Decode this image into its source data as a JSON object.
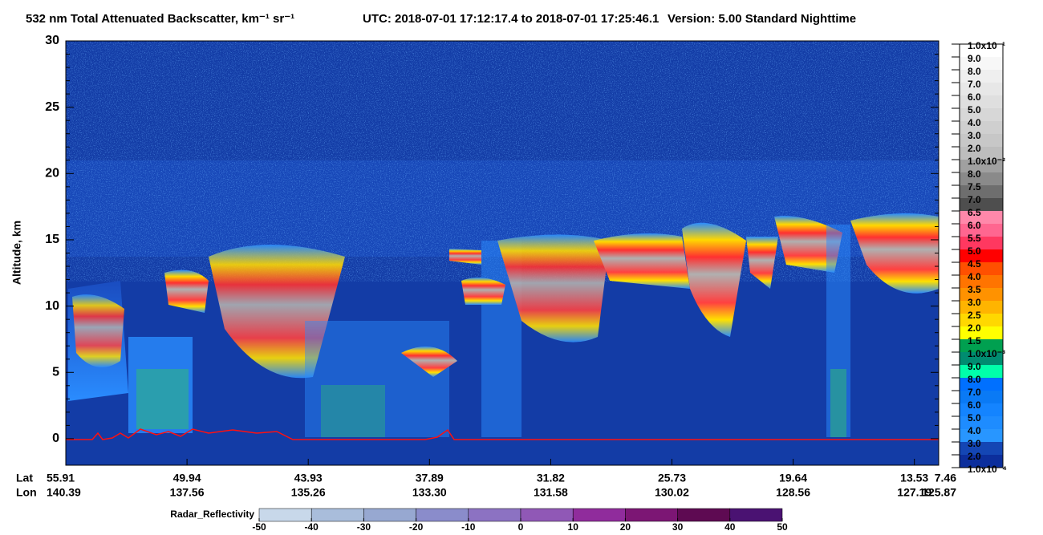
{
  "chart_data": {
    "type": "lidar-curtain",
    "title": "532 nm Total Attenuated Backscatter, km⁻¹ sr⁻¹",
    "subtitle": "UTC:  2018-07-01 17:12:17.4  to  2018-07-01 17:25:46.1",
    "version": "Version: 5.00  Standard  Nighttime",
    "ylabel": "Altitude, km",
    "ylim": [
      -2,
      30
    ],
    "yticks": [
      0,
      5,
      10,
      15,
      20,
      25,
      30
    ],
    "x_rows": [
      {
        "name": "Lat",
        "labels": [
          "55.91",
          "49.94",
          "43.93",
          "37.89",
          "31.82",
          "25.73",
          "19.64",
          "13.53",
          "7.46"
        ]
      },
      {
        "name": "Lon",
        "labels": [
          "140.39",
          "137.56",
          "135.26",
          "133.30",
          "131.58",
          "130.02",
          "128.56",
          "127.19",
          "125.87"
        ]
      }
    ],
    "colorbar": {
      "labels": [
        "1.0x10⁻¹",
        "9.0",
        "8.0",
        "7.0",
        "6.0",
        "5.0",
        "4.0",
        "3.0",
        "2.0",
        "1.0x10⁻²",
        "8.0",
        "7.5",
        "7.0",
        "6.5",
        "6.0",
        "5.5",
        "5.0",
        "4.5",
        "4.0",
        "3.5",
        "3.0",
        "2.5",
        "2.0",
        "1.5",
        "1.0x10⁻³",
        "9.0",
        "8.0",
        "7.0",
        "6.0",
        "5.0",
        "4.0",
        "3.0",
        "2.0",
        "1.0x10⁻⁴"
      ],
      "colors": [
        "#ffffff",
        "#f7f7f7",
        "#efefef",
        "#e7e7e7",
        "#dfdfdf",
        "#d7d7d7",
        "#cfcfcf",
        "#c7c7c7",
        "#bdbdbd",
        "#a0a0a0",
        "#8a8a8a",
        "#6e6e6e",
        "#4e4e4e",
        "#ff88aa",
        "#ff6690",
        "#ff3860",
        "#ff0000",
        "#ff5000",
        "#ff7400",
        "#ff9200",
        "#ffb400",
        "#ffd800",
        "#ffff00",
        "#00a050",
        "#008c70",
        "#00ffaa",
        "#0070ff",
        "#0a7af5",
        "#1484ff",
        "#1e8cff",
        "#2896ff",
        "#1446b4",
        "#0c2e9c"
      ]
    },
    "radar": {
      "label": "Radar_Reflectivity",
      "ticks": [
        -50,
        -40,
        -30,
        -20,
        -10,
        0,
        10,
        20,
        30,
        40,
        50
      ],
      "colors": [
        "#c8d8ea",
        "#a9bddb",
        "#97a8d1",
        "#8a8ccb",
        "#8c72c2",
        "#9058b6",
        "#902c9c",
        "#7c1674",
        "#5e0a52",
        "#4a1272"
      ]
    }
  }
}
